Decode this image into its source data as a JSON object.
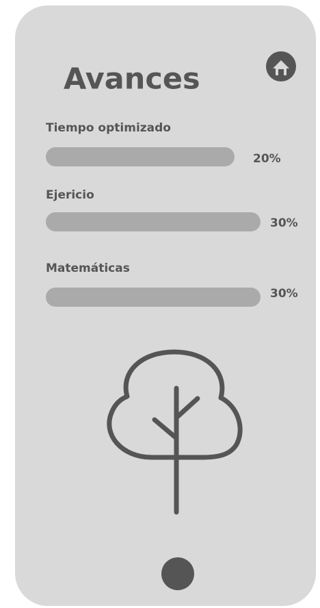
{
  "header": {
    "title": "Avances"
  },
  "items": [
    {
      "label": "Tiempo optimizado",
      "percent": "20%"
    },
    {
      "label": "Ejericio",
      "percent": "30%"
    },
    {
      "label": "Matemáticas",
      "percent": "30%"
    }
  ]
}
